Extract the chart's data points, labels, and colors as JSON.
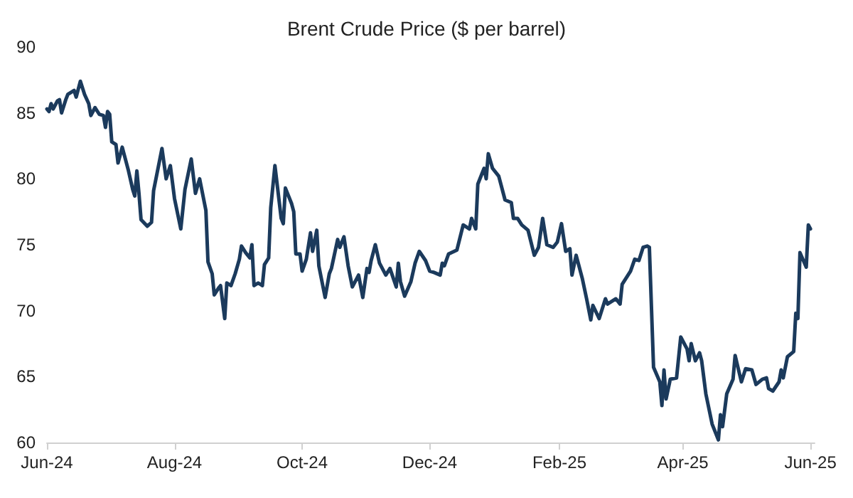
{
  "chart_data": {
    "type": "line",
    "title": "Brent Crude Price ($ per barrel)",
    "xlim": [
      "2024-06-01",
      "2025-06-03"
    ],
    "xticks": [
      {
        "value": "2024-06-01",
        "label": "Jun-24"
      },
      {
        "value": "2024-08-01",
        "label": "Aug-24"
      },
      {
        "value": "2024-10-01",
        "label": "Oct-24"
      },
      {
        "value": "2024-12-01",
        "label": "Dec-24"
      },
      {
        "value": "2025-02-01",
        "label": "Feb-25"
      },
      {
        "value": "2025-04-01",
        "label": "Apr-25"
      },
      {
        "value": "2025-06-01",
        "label": "Jun-25"
      }
    ],
    "ylim": [
      60,
      90
    ],
    "yticks": [
      60,
      65,
      70,
      75,
      80,
      85,
      90
    ],
    "grid": false,
    "marker": "none",
    "line_style": "solid",
    "series": [
      {
        "color": "#1b3a5c",
        "x": [
          "2024-06-01",
          "2024-06-02",
          "2024-06-03",
          "2024-06-04",
          "2024-06-06",
          "2024-06-07",
          "2024-06-08",
          "2024-06-10",
          "2024-06-11",
          "2024-06-14",
          "2024-06-15",
          "2024-06-17",
          "2024-06-19",
          "2024-06-21",
          "2024-06-22",
          "2024-06-24",
          "2024-06-26",
          "2024-06-28",
          "2024-06-29",
          "2024-06-30",
          "2024-07-01",
          "2024-07-02",
          "2024-07-04",
          "2024-07-05",
          "2024-07-07",
          "2024-07-10",
          "2024-07-12",
          "2024-07-13",
          "2024-07-14",
          "2024-07-15",
          "2024-07-16",
          "2024-07-19",
          "2024-07-21",
          "2024-07-22",
          "2024-07-26",
          "2024-07-28",
          "2024-07-30",
          "2024-08-01",
          "2024-08-04",
          "2024-08-06",
          "2024-08-09",
          "2024-08-11",
          "2024-08-13",
          "2024-08-16",
          "2024-08-17",
          "2024-08-19",
          "2024-08-20",
          "2024-08-22",
          "2024-08-23",
          "2024-08-25",
          "2024-08-26",
          "2024-08-28",
          "2024-08-30",
          "2024-09-01",
          "2024-09-02",
          "2024-09-04",
          "2024-09-06",
          "2024-09-07",
          "2024-09-08",
          "2024-09-10",
          "2024-09-12",
          "2024-09-13",
          "2024-09-15",
          "2024-09-16",
          "2024-09-18",
          "2024-09-21",
          "2024-09-22",
          "2024-09-23",
          "2024-09-26",
          "2024-09-27",
          "2024-09-28",
          "2024-09-30",
          "2024-10-01",
          "2024-10-03",
          "2024-10-05",
          "2024-10-06",
          "2024-10-08",
          "2024-10-09",
          "2024-10-12",
          "2024-10-14",
          "2024-10-15",
          "2024-10-18",
          "2024-10-19",
          "2024-10-21",
          "2024-10-23",
          "2024-10-25",
          "2024-10-28",
          "2024-10-30",
          "2024-11-01",
          "2024-11-02",
          "2024-11-03",
          "2024-11-05",
          "2024-11-07",
          "2024-11-10",
          "2024-11-12",
          "2024-11-15",
          "2024-11-16",
          "2024-11-17",
          "2024-11-19",
          "2024-11-22",
          "2024-11-24",
          "2024-11-26",
          "2024-11-29",
          "2024-12-01",
          "2024-12-03",
          "2024-12-06",
          "2024-12-07",
          "2024-12-08",
          "2024-12-10",
          "2024-12-14",
          "2024-12-17",
          "2024-12-20",
          "2024-12-21",
          "2024-12-23",
          "2024-12-24",
          "2024-12-27",
          "2024-12-28",
          "2024-12-29",
          "2024-12-31",
          "2025-01-03",
          "2025-01-06",
          "2025-01-09",
          "2025-01-10",
          "2025-01-12",
          "2025-01-14",
          "2025-01-17",
          "2025-01-20",
          "2025-01-22",
          "2025-01-23",
          "2025-01-24",
          "2025-01-26",
          "2025-01-29",
          "2025-01-31",
          "2025-02-02",
          "2025-02-04",
          "2025-02-06",
          "2025-02-07",
          "2025-02-09",
          "2025-02-12",
          "2025-02-14",
          "2025-02-16",
          "2025-02-17",
          "2025-02-20",
          "2025-02-23",
          "2025-02-24",
          "2025-02-28",
          "2025-03-02",
          "2025-03-03",
          "2025-03-07",
          "2025-03-09",
          "2025-03-11",
          "2025-03-13",
          "2025-03-15",
          "2025-03-16",
          "2025-03-18",
          "2025-03-21",
          "2025-03-22",
          "2025-03-23",
          "2025-03-24",
          "2025-03-26",
          "2025-03-29",
          "2025-03-31",
          "2025-04-03",
          "2025-04-04",
          "2025-04-05",
          "2025-04-07",
          "2025-04-09",
          "2025-04-10",
          "2025-04-12",
          "2025-04-15",
          "2025-04-18",
          "2025-04-19",
          "2025-04-20",
          "2025-04-22",
          "2025-04-25",
          "2025-04-26",
          "2025-04-29",
          "2025-05-01",
          "2025-05-04",
          "2025-05-06",
          "2025-05-09",
          "2025-05-11",
          "2025-05-12",
          "2025-05-14",
          "2025-05-17",
          "2025-05-18",
          "2025-05-19",
          "2025-05-21",
          "2025-05-24",
          "2025-05-25",
          "2025-05-26",
          "2025-05-27",
          "2025-05-30",
          "2025-05-31",
          "2025-06-01"
        ],
        "values": [
          85.3,
          85.1,
          85.7,
          85.3,
          85.9,
          86.0,
          85.0,
          86.0,
          86.4,
          86.7,
          86.2,
          87.4,
          86.4,
          85.7,
          84.8,
          85.4,
          84.9,
          84.8,
          83.9,
          85.1,
          84.9,
          82.8,
          82.6,
          81.2,
          82.4,
          80.6,
          79.2,
          78.7,
          80.6,
          78.9,
          76.9,
          76.4,
          76.7,
          79.1,
          82.3,
          80.0,
          81.0,
          78.5,
          76.2,
          79.2,
          81.5,
          78.9,
          80.0,
          77.6,
          73.7,
          72.8,
          71.2,
          71.7,
          71.9,
          69.4,
          72.1,
          71.9,
          72.8,
          73.9,
          74.9,
          74.4,
          74.0,
          75.0,
          71.9,
          72.1,
          71.9,
          73.5,
          74.0,
          77.8,
          81.0,
          77.0,
          76.6,
          79.3,
          78.1,
          77.5,
          74.3,
          74.3,
          73.0,
          73.9,
          75.9,
          74.5,
          76.1,
          73.4,
          71.0,
          72.8,
          73.2,
          75.4,
          74.8,
          75.6,
          73.4,
          71.8,
          72.7,
          71.0,
          73.2,
          72.9,
          73.8,
          75.0,
          73.6,
          72.7,
          73.2,
          71.8,
          73.6,
          72.2,
          71.1,
          72.2,
          73.6,
          74.5,
          73.8,
          73.0,
          72.9,
          72.7,
          73.6,
          73.4,
          74.3,
          74.6,
          76.5,
          76.2,
          77.0,
          76.2,
          79.6,
          80.8,
          80.0,
          81.9,
          80.8,
          80.2,
          78.4,
          78.2,
          77.0,
          77.0,
          76.5,
          76.1,
          74.2,
          74.8,
          75.9,
          77.0,
          75.0,
          74.8,
          75.2,
          76.6,
          74.5,
          74.7,
          72.7,
          74.2,
          72.4,
          70.9,
          69.3,
          70.4,
          69.4,
          70.9,
          70.5,
          70.9,
          70.5,
          72.0,
          73.0,
          73.9,
          73.8,
          74.8,
          74.9,
          74.8,
          65.7,
          64.6,
          62.8,
          65.5,
          63.3,
          64.8,
          64.9,
          68.0,
          67.1,
          66.2,
          67.5,
          66.2,
          66.8,
          66.2,
          63.7,
          61.4,
          60.2,
          62.1,
          61.2,
          63.7,
          64.8,
          66.6,
          64.6,
          65.6,
          65.5,
          64.4,
          64.8,
          64.9,
          64.1,
          63.9,
          64.6,
          65.5,
          64.9,
          66.5,
          66.9,
          69.8,
          69.4,
          74.4,
          73.3,
          76.5,
          76.2
        ]
      }
    ]
  }
}
